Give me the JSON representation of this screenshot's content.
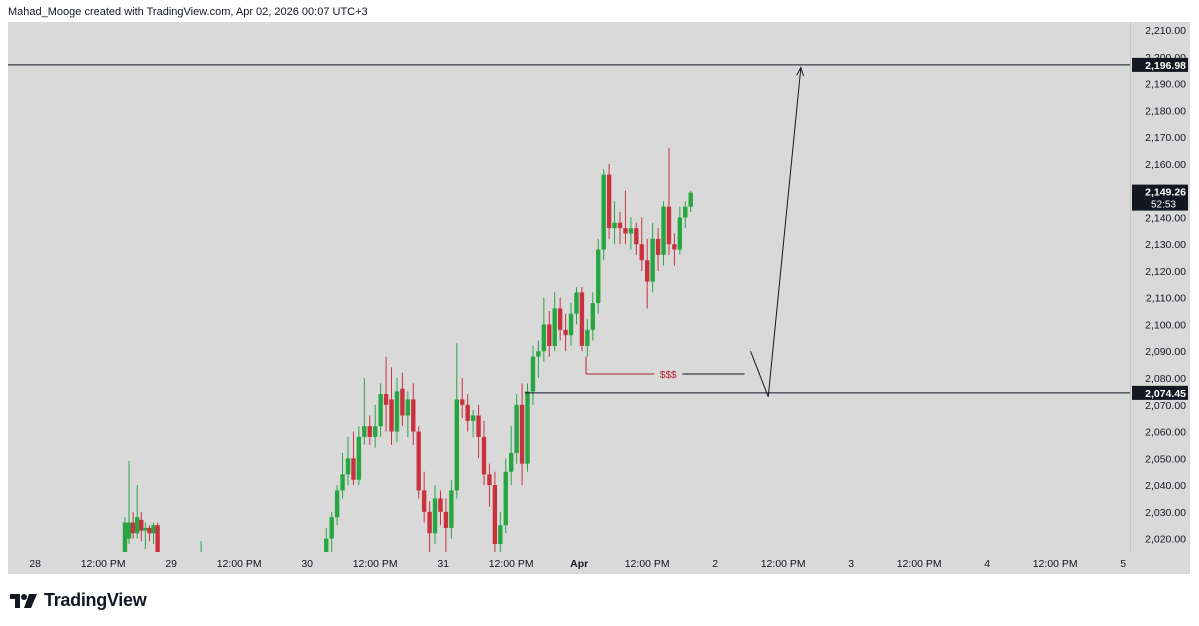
{
  "header": {
    "credit": "Mahad_Mooge created with TradingView.com, Apr 02, 2026 00:07 UTC+3"
  },
  "footer": {
    "brand": "TradingView"
  },
  "colors": {
    "background": "#d9d9d9",
    "bullish": "#26a641",
    "bearish": "#c9323d",
    "line": "#131722",
    "liquidity": "#b22234"
  },
  "chart_data": {
    "type": "candlestick",
    "ylim": [
      2015,
      2213
    ],
    "y_ticks": [
      {
        "v": 2020,
        "label": "2,020.00"
      },
      {
        "v": 2030,
        "label": "2,030.00"
      },
      {
        "v": 2040,
        "label": "2,040.00"
      },
      {
        "v": 2050,
        "label": "2,050.00"
      },
      {
        "v": 2060,
        "label": "2,060.00"
      },
      {
        "v": 2070,
        "label": "2,070.00"
      },
      {
        "v": 2080,
        "label": "2,080.00"
      },
      {
        "v": 2090,
        "label": "2,090.00"
      },
      {
        "v": 2100,
        "label": "2,100.00"
      },
      {
        "v": 2110,
        "label": "2,110.00"
      },
      {
        "v": 2120,
        "label": "2,120.00"
      },
      {
        "v": 2130,
        "label": "2,130.00"
      },
      {
        "v": 2140,
        "label": "2,140.00"
      },
      {
        "v": 2150,
        "label": "2,150.00"
      },
      {
        "v": 2160,
        "label": "2,160.00"
      },
      {
        "v": 2170,
        "label": "2,170.00"
      },
      {
        "v": 2180,
        "label": "2,180.00"
      },
      {
        "v": 2190,
        "label": "2,190.00"
      },
      {
        "v": 2200,
        "label": "2,200.00"
      },
      {
        "v": 2210,
        "label": "2,210.00"
      }
    ],
    "x_ticks": [
      {
        "label": "28",
        "bold": false
      },
      {
        "label": "12:00 PM",
        "bold": false
      },
      {
        "label": "29",
        "bold": false
      },
      {
        "label": "12:00 PM",
        "bold": false
      },
      {
        "label": "30",
        "bold": false
      },
      {
        "label": "12:00 PM",
        "bold": false
      },
      {
        "label": "31",
        "bold": false
      },
      {
        "label": "12:00 PM",
        "bold": false
      },
      {
        "label": "Apr",
        "bold": true
      },
      {
        "label": "12:00 PM",
        "bold": false
      },
      {
        "label": "2",
        "bold": false
      },
      {
        "label": "12:00 PM",
        "bold": false
      },
      {
        "label": "3",
        "bold": false
      },
      {
        "label": "12:00 PM",
        "bold": false
      },
      {
        "label": "4",
        "bold": false
      },
      {
        "label": "12:00 PM",
        "bold": false
      },
      {
        "label": "5",
        "bold": false
      }
    ],
    "x_range": [
      -0.2,
      8.05
    ],
    "candles": [
      {
        "t": 0.66,
        "o": 2014,
        "h": 2028,
        "l": 2012,
        "c": 2026
      },
      {
        "t": 0.69,
        "o": 2020,
        "h": 2049,
        "l": 2018,
        "c": 2026
      },
      {
        "t": 0.72,
        "o": 2026,
        "h": 2030,
        "l": 2020,
        "c": 2022
      },
      {
        "t": 0.75,
        "o": 2022,
        "h": 2040,
        "l": 2020,
        "c": 2028
      },
      {
        "t": 0.78,
        "o": 2027,
        "h": 2030,
        "l": 2019,
        "c": 2023
      },
      {
        "t": 0.81,
        "o": 2023,
        "h": 2026,
        "l": 2016,
        "c": 2024
      },
      {
        "t": 0.84,
        "o": 2024,
        "h": 2025,
        "l": 2019,
        "c": 2022
      },
      {
        "t": 0.87,
        "o": 2022,
        "h": 2026,
        "l": 2018,
        "c": 2025
      },
      {
        "t": 0.9,
        "o": 2025,
        "h": 2026,
        "l": 2012,
        "c": 2014
      },
      {
        "t": 1.22,
        "o": 2013,
        "h": 2019,
        "l": 2010,
        "c": 2013
      },
      {
        "t": 2.14,
        "o": 2012,
        "h": 2024,
        "l": 2010,
        "c": 2020
      },
      {
        "t": 2.18,
        "o": 2020,
        "h": 2030,
        "l": 2015,
        "c": 2028
      },
      {
        "t": 2.22,
        "o": 2028,
        "h": 2040,
        "l": 2025,
        "c": 2038
      },
      {
        "t": 2.26,
        "o": 2038,
        "h": 2052,
        "l": 2035,
        "c": 2044
      },
      {
        "t": 2.3,
        "o": 2044,
        "h": 2058,
        "l": 2040,
        "c": 2050
      },
      {
        "t": 2.34,
        "o": 2050,
        "h": 2060,
        "l": 2040,
        "c": 2042
      },
      {
        "t": 2.38,
        "o": 2042,
        "h": 2062,
        "l": 2040,
        "c": 2058
      },
      {
        "t": 2.42,
        "o": 2058,
        "h": 2080,
        "l": 2055,
        "c": 2062
      },
      {
        "t": 2.46,
        "o": 2062,
        "h": 2066,
        "l": 2055,
        "c": 2058
      },
      {
        "t": 2.5,
        "o": 2058,
        "h": 2070,
        "l": 2054,
        "c": 2062
      },
      {
        "t": 2.54,
        "o": 2062,
        "h": 2078,
        "l": 2058,
        "c": 2074
      },
      {
        "t": 2.58,
        "o": 2074,
        "h": 2088,
        "l": 2060,
        "c": 2070
      },
      {
        "t": 2.62,
        "o": 2072,
        "h": 2084,
        "l": 2055,
        "c": 2060
      },
      {
        "t": 2.66,
        "o": 2060,
        "h": 2080,
        "l": 2056,
        "c": 2075
      },
      {
        "t": 2.7,
        "o": 2076,
        "h": 2082,
        "l": 2062,
        "c": 2066
      },
      {
        "t": 2.74,
        "o": 2066,
        "h": 2075,
        "l": 2058,
        "c": 2072
      },
      {
        "t": 2.78,
        "o": 2072,
        "h": 2078,
        "l": 2055,
        "c": 2060
      },
      {
        "t": 2.82,
        "o": 2060,
        "h": 2062,
        "l": 2035,
        "c": 2038
      },
      {
        "t": 2.86,
        "o": 2038,
        "h": 2045,
        "l": 2026,
        "c": 2030
      },
      {
        "t": 2.9,
        "o": 2030,
        "h": 2034,
        "l": 2012,
        "c": 2022
      },
      {
        "t": 2.94,
        "o": 2022,
        "h": 2040,
        "l": 2018,
        "c": 2035
      },
      {
        "t": 2.98,
        "o": 2035,
        "h": 2038,
        "l": 2025,
        "c": 2030
      },
      {
        "t": 3.02,
        "o": 2030,
        "h": 2035,
        "l": 2012,
        "c": 2024
      },
      {
        "t": 3.06,
        "o": 2024,
        "h": 2042,
        "l": 2020,
        "c": 2038
      },
      {
        "t": 3.1,
        "o": 2038,
        "h": 2093,
        "l": 2035,
        "c": 2072
      },
      {
        "t": 3.14,
        "o": 2072,
        "h": 2080,
        "l": 2065,
        "c": 2070
      },
      {
        "t": 3.18,
        "o": 2070,
        "h": 2074,
        "l": 2060,
        "c": 2064
      },
      {
        "t": 3.22,
        "o": 2064,
        "h": 2068,
        "l": 2058,
        "c": 2066
      },
      {
        "t": 3.26,
        "o": 2066,
        "h": 2070,
        "l": 2050,
        "c": 2058
      },
      {
        "t": 3.3,
        "o": 2058,
        "h": 2064,
        "l": 2040,
        "c": 2044
      },
      {
        "t": 3.34,
        "o": 2044,
        "h": 2048,
        "l": 2032,
        "c": 2040
      },
      {
        "t": 3.38,
        "o": 2040,
        "h": 2045,
        "l": 2015,
        "c": 2018
      },
      {
        "t": 3.42,
        "o": 2018,
        "h": 2030,
        "l": 2015,
        "c": 2025
      },
      {
        "t": 3.46,
        "o": 2025,
        "h": 2050,
        "l": 2022,
        "c": 2045
      },
      {
        "t": 3.5,
        "o": 2045,
        "h": 2062,
        "l": 2040,
        "c": 2052
      },
      {
        "t": 3.54,
        "o": 2052,
        "h": 2074,
        "l": 2048,
        "c": 2070
      },
      {
        "t": 3.58,
        "o": 2070,
        "h": 2078,
        "l": 2040,
        "c": 2048
      },
      {
        "t": 3.62,
        "o": 2048,
        "h": 2078,
        "l": 2045,
        "c": 2075
      },
      {
        "t": 3.66,
        "o": 2075,
        "h": 2092,
        "l": 2070,
        "c": 2088
      },
      {
        "t": 3.7,
        "o": 2088,
        "h": 2094,
        "l": 2080,
        "c": 2090
      },
      {
        "t": 3.74,
        "o": 2090,
        "h": 2110,
        "l": 2086,
        "c": 2100
      },
      {
        "t": 3.78,
        "o": 2100,
        "h": 2105,
        "l": 2088,
        "c": 2092
      },
      {
        "t": 3.82,
        "o": 2092,
        "h": 2112,
        "l": 2090,
        "c": 2106
      },
      {
        "t": 3.86,
        "o": 2106,
        "h": 2110,
        "l": 2094,
        "c": 2098
      },
      {
        "t": 3.9,
        "o": 2098,
        "h": 2104,
        "l": 2090,
        "c": 2096
      },
      {
        "t": 3.94,
        "o": 2096,
        "h": 2108,
        "l": 2092,
        "c": 2104
      },
      {
        "t": 3.98,
        "o": 2104,
        "h": 2114,
        "l": 2100,
        "c": 2112
      },
      {
        "t": 4.02,
        "o": 2112,
        "h": 2114,
        "l": 2090,
        "c": 2092
      },
      {
        "t": 4.06,
        "o": 2092,
        "h": 2102,
        "l": 2088,
        "c": 2098
      },
      {
        "t": 4.1,
        "o": 2098,
        "h": 2112,
        "l": 2094,
        "c": 2108
      },
      {
        "t": 4.14,
        "o": 2108,
        "h": 2132,
        "l": 2104,
        "c": 2128
      },
      {
        "t": 4.18,
        "o": 2128,
        "h": 2158,
        "l": 2124,
        "c": 2156
      },
      {
        "t": 4.22,
        "o": 2156,
        "h": 2160,
        "l": 2132,
        "c": 2136
      },
      {
        "t": 4.26,
        "o": 2136,
        "h": 2146,
        "l": 2130,
        "c": 2138
      },
      {
        "t": 4.3,
        "o": 2138,
        "h": 2142,
        "l": 2130,
        "c": 2136
      },
      {
        "t": 4.34,
        "o": 2136,
        "h": 2150,
        "l": 2130,
        "c": 2134
      },
      {
        "t": 4.38,
        "o": 2134,
        "h": 2140,
        "l": 2128,
        "c": 2136
      },
      {
        "t": 4.42,
        "o": 2136,
        "h": 2138,
        "l": 2126,
        "c": 2130
      },
      {
        "t": 4.46,
        "o": 2130,
        "h": 2140,
        "l": 2120,
        "c": 2124
      },
      {
        "t": 4.5,
        "o": 2124,
        "h": 2132,
        "l": 2106,
        "c": 2116
      },
      {
        "t": 4.54,
        "o": 2116,
        "h": 2138,
        "l": 2112,
        "c": 2132
      },
      {
        "t": 4.58,
        "o": 2132,
        "h": 2136,
        "l": 2120,
        "c": 2126
      },
      {
        "t": 4.62,
        "o": 2126,
        "h": 2146,
        "l": 2122,
        "c": 2144
      },
      {
        "t": 4.66,
        "o": 2144,
        "h": 2166,
        "l": 2126,
        "c": 2130
      },
      {
        "t": 4.7,
        "o": 2130,
        "h": 2134,
        "l": 2122,
        "c": 2128
      },
      {
        "t": 4.74,
        "o": 2128,
        "h": 2144,
        "l": 2126,
        "c": 2140
      },
      {
        "t": 4.78,
        "o": 2140,
        "h": 2146,
        "l": 2136,
        "c": 2144
      },
      {
        "t": 4.82,
        "o": 2144,
        "h": 2150,
        "l": 2142,
        "c": 2149.26
      }
    ],
    "levels": [
      {
        "price": 2196.98,
        "label": "2,196.98",
        "x_start": -0.2
      },
      {
        "price": 2074.45,
        "label": "2,074.45",
        "x_start": 3.6
      }
    ],
    "current_price": {
      "price": 2149.26,
      "label": "2,149.26",
      "countdown": "52:53"
    },
    "liquidity": {
      "label": "$$$",
      "price": 2081.5,
      "x_start": 4.05,
      "x_end": 5.26
    },
    "projection": [
      {
        "t": 5.26,
        "p": 2090
      },
      {
        "t": 5.39,
        "p": 2073
      },
      {
        "t": 5.63,
        "p": 2196
      }
    ]
  }
}
